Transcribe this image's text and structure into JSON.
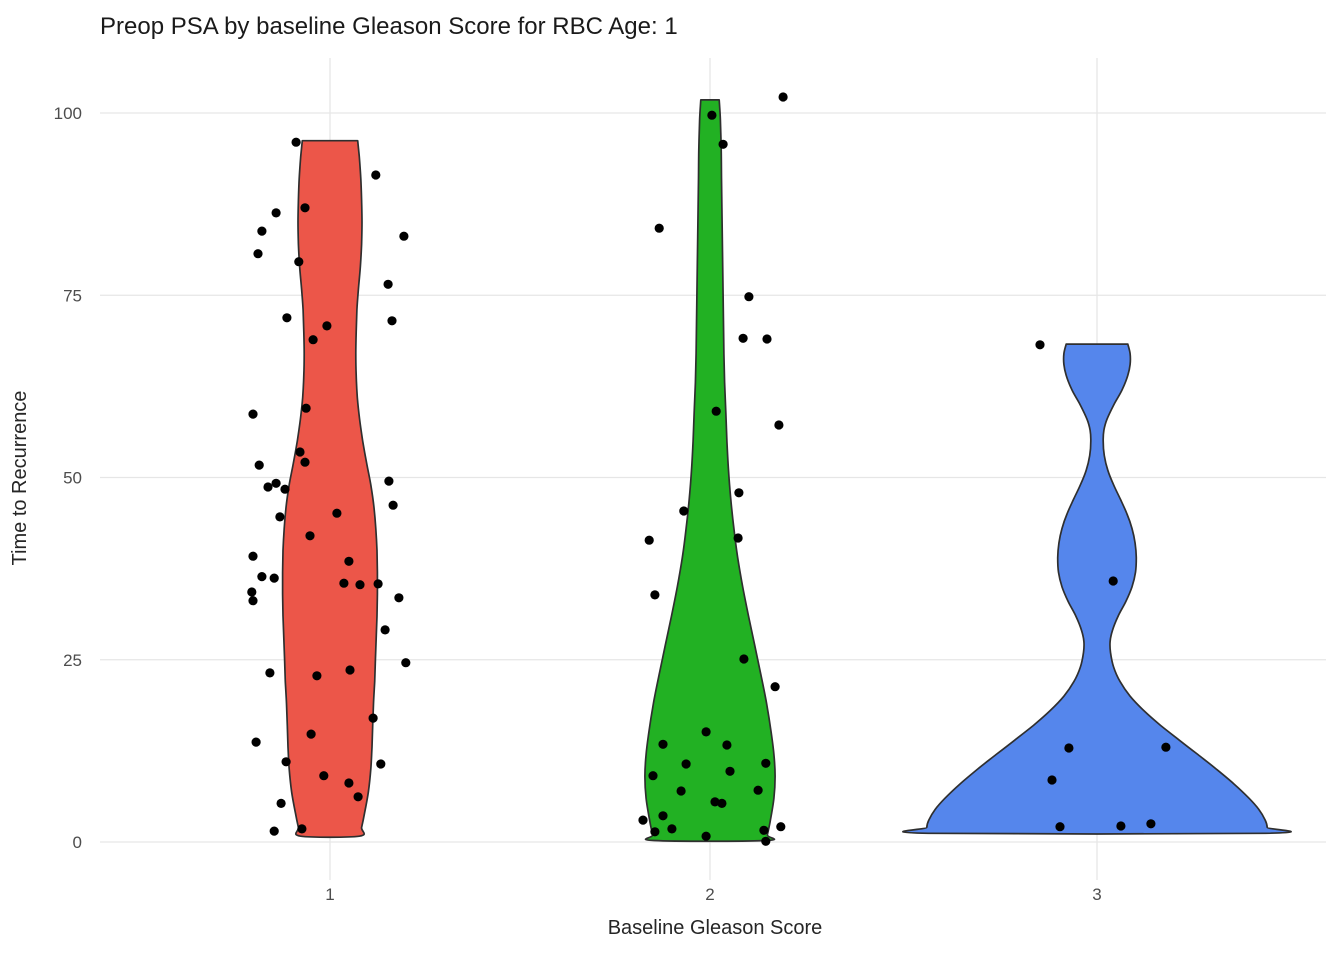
{
  "chart_data": {
    "type": "violin",
    "title": "Preop PSA by baseline Gleason Score for RBC Age: 1",
    "xlabel": "Baseline Gleason Score",
    "ylabel": "Time to Recurrence",
    "categories": [
      "1",
      "2",
      "3"
    ],
    "y_ticks": [
      0,
      25,
      50,
      75,
      100
    ],
    "ylim": [
      0,
      102
    ],
    "grid": true,
    "legend": "none",
    "colors": {
      "outline": "#2f2f2f",
      "point": "#000000",
      "grid_major": "#e6e6e6",
      "axis_text": "#4d4d4d",
      "label_text": "#1a1a1a",
      "background": "#ffffff"
    },
    "series": [
      {
        "name": "1",
        "color": "#ec5649",
        "violin_profile": [
          [
            96.2,
            0.072
          ],
          [
            94,
            0.076
          ],
          [
            91,
            0.08
          ],
          [
            88,
            0.082
          ],
          [
            85,
            0.083
          ],
          [
            82,
            0.082
          ],
          [
            79,
            0.079
          ],
          [
            76,
            0.074
          ],
          [
            73,
            0.07
          ],
          [
            70,
            0.068
          ],
          [
            67,
            0.067
          ],
          [
            64,
            0.068
          ],
          [
            61,
            0.071
          ],
          [
            58,
            0.077
          ],
          [
            55,
            0.085
          ],
          [
            52,
            0.095
          ],
          [
            49,
            0.106
          ],
          [
            46,
            0.114
          ],
          [
            43,
            0.119
          ],
          [
            40,
            0.122
          ],
          [
            37,
            0.123
          ],
          [
            34,
            0.123
          ],
          [
            31,
            0.122
          ],
          [
            28,
            0.12
          ],
          [
            25,
            0.118
          ],
          [
            22,
            0.116
          ],
          [
            19,
            0.113
          ],
          [
            16,
            0.111
          ],
          [
            13,
            0.109
          ],
          [
            10,
            0.106
          ],
          [
            7,
            0.1
          ],
          [
            4,
            0.09
          ],
          [
            2,
            0.082
          ],
          [
            0.8,
            0.076
          ]
        ],
        "points": [
          [
            -0.088,
            96.0
          ],
          [
            0.119,
            91.5
          ],
          [
            -0.065,
            87.0
          ],
          [
            -0.14,
            86.3
          ],
          [
            -0.177,
            83.8
          ],
          [
            0.192,
            83.1
          ],
          [
            -0.187,
            80.7
          ],
          [
            -0.081,
            79.6
          ],
          [
            0.151,
            76.5
          ],
          [
            -0.112,
            71.9
          ],
          [
            -0.008,
            70.8
          ],
          [
            0.161,
            71.5
          ],
          [
            -0.044,
            68.9
          ],
          [
            -0.062,
            59.5
          ],
          [
            -0.2,
            58.7
          ],
          [
            -0.078,
            53.5
          ],
          [
            -0.065,
            52.1
          ],
          [
            -0.184,
            51.7
          ],
          [
            -0.14,
            49.2
          ],
          [
            -0.161,
            48.7
          ],
          [
            -0.117,
            48.4
          ],
          [
            0.153,
            49.5
          ],
          [
            0.164,
            46.2
          ],
          [
            -0.13,
            44.6
          ],
          [
            0.018,
            45.1
          ],
          [
            -0.052,
            42.0
          ],
          [
            0.049,
            38.5
          ],
          [
            -0.2,
            39.2
          ],
          [
            -0.177,
            36.4
          ],
          [
            -0.145,
            36.2
          ],
          [
            0.036,
            35.5
          ],
          [
            0.078,
            35.3
          ],
          [
            -0.203,
            34.3
          ],
          [
            -0.2,
            33.1
          ],
          [
            0.179,
            33.5
          ],
          [
            0.125,
            35.4
          ],
          [
            0.143,
            29.1
          ],
          [
            0.052,
            23.6
          ],
          [
            0.197,
            24.6
          ],
          [
            -0.156,
            23.2
          ],
          [
            -0.034,
            22.8
          ],
          [
            0.112,
            17.0
          ],
          [
            -0.192,
            13.7
          ],
          [
            -0.049,
            14.8
          ],
          [
            -0.114,
            11.0
          ],
          [
            0.132,
            10.7
          ],
          [
            -0.016,
            9.1
          ],
          [
            0.049,
            8.1
          ],
          [
            0.073,
            6.2
          ],
          [
            -0.127,
            5.3
          ],
          [
            -0.073,
            1.8
          ],
          [
            -0.145,
            1.5
          ]
        ]
      },
      {
        "name": "2",
        "color": "#22b123",
        "violin_profile": [
          [
            101.8,
            0.024
          ],
          [
            99,
            0.027
          ],
          [
            95,
            0.029
          ],
          [
            91,
            0.03
          ],
          [
            87,
            0.031
          ],
          [
            83,
            0.032
          ],
          [
            79,
            0.033
          ],
          [
            75,
            0.034
          ],
          [
            71,
            0.035
          ],
          [
            67,
            0.036
          ],
          [
            63,
            0.038
          ],
          [
            59,
            0.041
          ],
          [
            55,
            0.044
          ],
          [
            51,
            0.048
          ],
          [
            47,
            0.054
          ],
          [
            43,
            0.062
          ],
          [
            39,
            0.072
          ],
          [
            35,
            0.085
          ],
          [
            31,
            0.1
          ],
          [
            27,
            0.116
          ],
          [
            23,
            0.132
          ],
          [
            19,
            0.147
          ],
          [
            15,
            0.159
          ],
          [
            12,
            0.166
          ],
          [
            9,
            0.169
          ],
          [
            6,
            0.166
          ],
          [
            3,
            0.157
          ],
          [
            1,
            0.149
          ],
          [
            0.2,
            0.145
          ]
        ],
        "points": [
          [
            0.005,
            99.7
          ],
          [
            0.19,
            102.2
          ],
          [
            0.034,
            95.7
          ],
          [
            -0.132,
            84.2
          ],
          [
            0.101,
            74.8
          ],
          [
            0.086,
            69.1
          ],
          [
            0.148,
            69.0
          ],
          [
            0.016,
            59.1
          ],
          [
            0.179,
            57.2
          ],
          [
            -0.068,
            45.4
          ],
          [
            0.075,
            47.9
          ],
          [
            -0.158,
            41.4
          ],
          [
            0.073,
            41.7
          ],
          [
            -0.143,
            33.9
          ],
          [
            0.088,
            25.1
          ],
          [
            0.169,
            21.3
          ],
          [
            -0.122,
            13.4
          ],
          [
            -0.01,
            15.1
          ],
          [
            0.044,
            13.3
          ],
          [
            -0.062,
            10.7
          ],
          [
            0.052,
            9.7
          ],
          [
            0.145,
            10.8
          ],
          [
            -0.148,
            9.1
          ],
          [
            -0.075,
            7.0
          ],
          [
            0.125,
            7.1
          ],
          [
            0.013,
            5.5
          ],
          [
            0.031,
            5.3
          ],
          [
            -0.122,
            3.6
          ],
          [
            -0.174,
            3.0
          ],
          [
            -0.099,
            1.8
          ],
          [
            -0.143,
            1.4
          ],
          [
            -0.01,
            0.8
          ],
          [
            0.14,
            1.6
          ],
          [
            0.184,
            2.1
          ],
          [
            0.145,
            0.1
          ]
        ]
      },
      {
        "name": "3",
        "color": "#5586ec",
        "violin_profile": [
          [
            68.3,
            0.08
          ],
          [
            67,
            0.086
          ],
          [
            65.5,
            0.086
          ],
          [
            64,
            0.08
          ],
          [
            62,
            0.065
          ],
          [
            60,
            0.044
          ],
          [
            58,
            0.026
          ],
          [
            56.5,
            0.018
          ],
          [
            55,
            0.016
          ],
          [
            53,
            0.019
          ],
          [
            51,
            0.028
          ],
          [
            49,
            0.043
          ],
          [
            47,
            0.061
          ],
          [
            45,
            0.078
          ],
          [
            43,
            0.091
          ],
          [
            41,
            0.099
          ],
          [
            39,
            0.102
          ],
          [
            37,
            0.1
          ],
          [
            35,
            0.091
          ],
          [
            33,
            0.075
          ],
          [
            31,
            0.055
          ],
          [
            29,
            0.04
          ],
          [
            27.5,
            0.034
          ],
          [
            26,
            0.035
          ],
          [
            24,
            0.043
          ],
          [
            22,
            0.06
          ],
          [
            20,
            0.086
          ],
          [
            18,
            0.122
          ],
          [
            16,
            0.165
          ],
          [
            14,
            0.213
          ],
          [
            12,
            0.262
          ],
          [
            10,
            0.31
          ],
          [
            8,
            0.355
          ],
          [
            6,
            0.395
          ],
          [
            4.5,
            0.42
          ],
          [
            3,
            0.437
          ],
          [
            2,
            0.442
          ],
          [
            1.2,
            0.438
          ]
        ],
        "points": [
          [
            -0.148,
            68.2
          ],
          [
            0.042,
            35.8
          ],
          [
            -0.073,
            12.9
          ],
          [
            0.179,
            13.0
          ],
          [
            -0.117,
            8.5
          ],
          [
            -0.096,
            2.1
          ],
          [
            0.062,
            2.2
          ],
          [
            0.14,
            2.5
          ]
        ]
      }
    ]
  }
}
